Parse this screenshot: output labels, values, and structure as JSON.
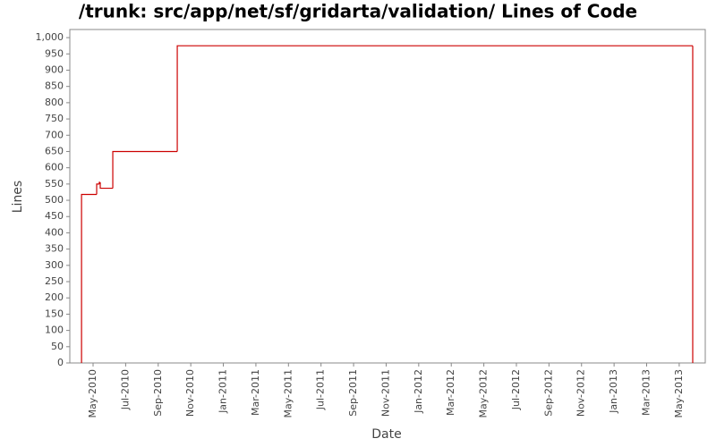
{
  "chart_data": {
    "type": "step-line",
    "title": "/trunk: src/app/net/sf/gridarta/validation/ Lines of Code",
    "x_label": "Date",
    "y_label": "Lines",
    "series": [
      {
        "name": "Lines",
        "color": "#cc0000",
        "x": [
          -0.71,
          -0.71,
          0.22,
          0.38,
          0.44,
          1.21,
          5.17,
          36.83
        ],
        "values": [
          0,
          518,
          550,
          555,
          537,
          650,
          975,
          0
        ]
      }
    ],
    "xlim": [
      -1.43,
      37.6
    ],
    "xticks": [
      {
        "value": 0,
        "label": "May-2010"
      },
      {
        "value": 2,
        "label": "Jul-2010"
      },
      {
        "value": 4,
        "label": "Sep-2010"
      },
      {
        "value": 6,
        "label": "Nov-2010"
      },
      {
        "value": 8,
        "label": "Jan-2011"
      },
      {
        "value": 10,
        "label": "Mar-2011"
      },
      {
        "value": 12,
        "label": "May-2011"
      },
      {
        "value": 14,
        "label": "Jul-2011"
      },
      {
        "value": 16,
        "label": "Sep-2011"
      },
      {
        "value": 18,
        "label": "Nov-2011"
      },
      {
        "value": 20,
        "label": "Jan-2012"
      },
      {
        "value": 22,
        "label": "Mar-2012"
      },
      {
        "value": 24,
        "label": "May-2012"
      },
      {
        "value": 26,
        "label": "Jul-2012"
      },
      {
        "value": 28,
        "label": "Sep-2012"
      },
      {
        "value": 30,
        "label": "Nov-2012"
      },
      {
        "value": 32,
        "label": "Jan-2013"
      },
      {
        "value": 34,
        "label": "Mar-2013"
      },
      {
        "value": 36,
        "label": "May-2013"
      }
    ],
    "ylim": [
      0,
      1025
    ],
    "yticks": [
      0,
      50,
      100,
      150,
      200,
      250,
      300,
      350,
      400,
      450,
      500,
      550,
      600,
      650,
      700,
      750,
      800,
      850,
      900,
      950,
      {
        "value": 1000,
        "label": "1,000"
      }
    ],
    "grid": false
  }
}
